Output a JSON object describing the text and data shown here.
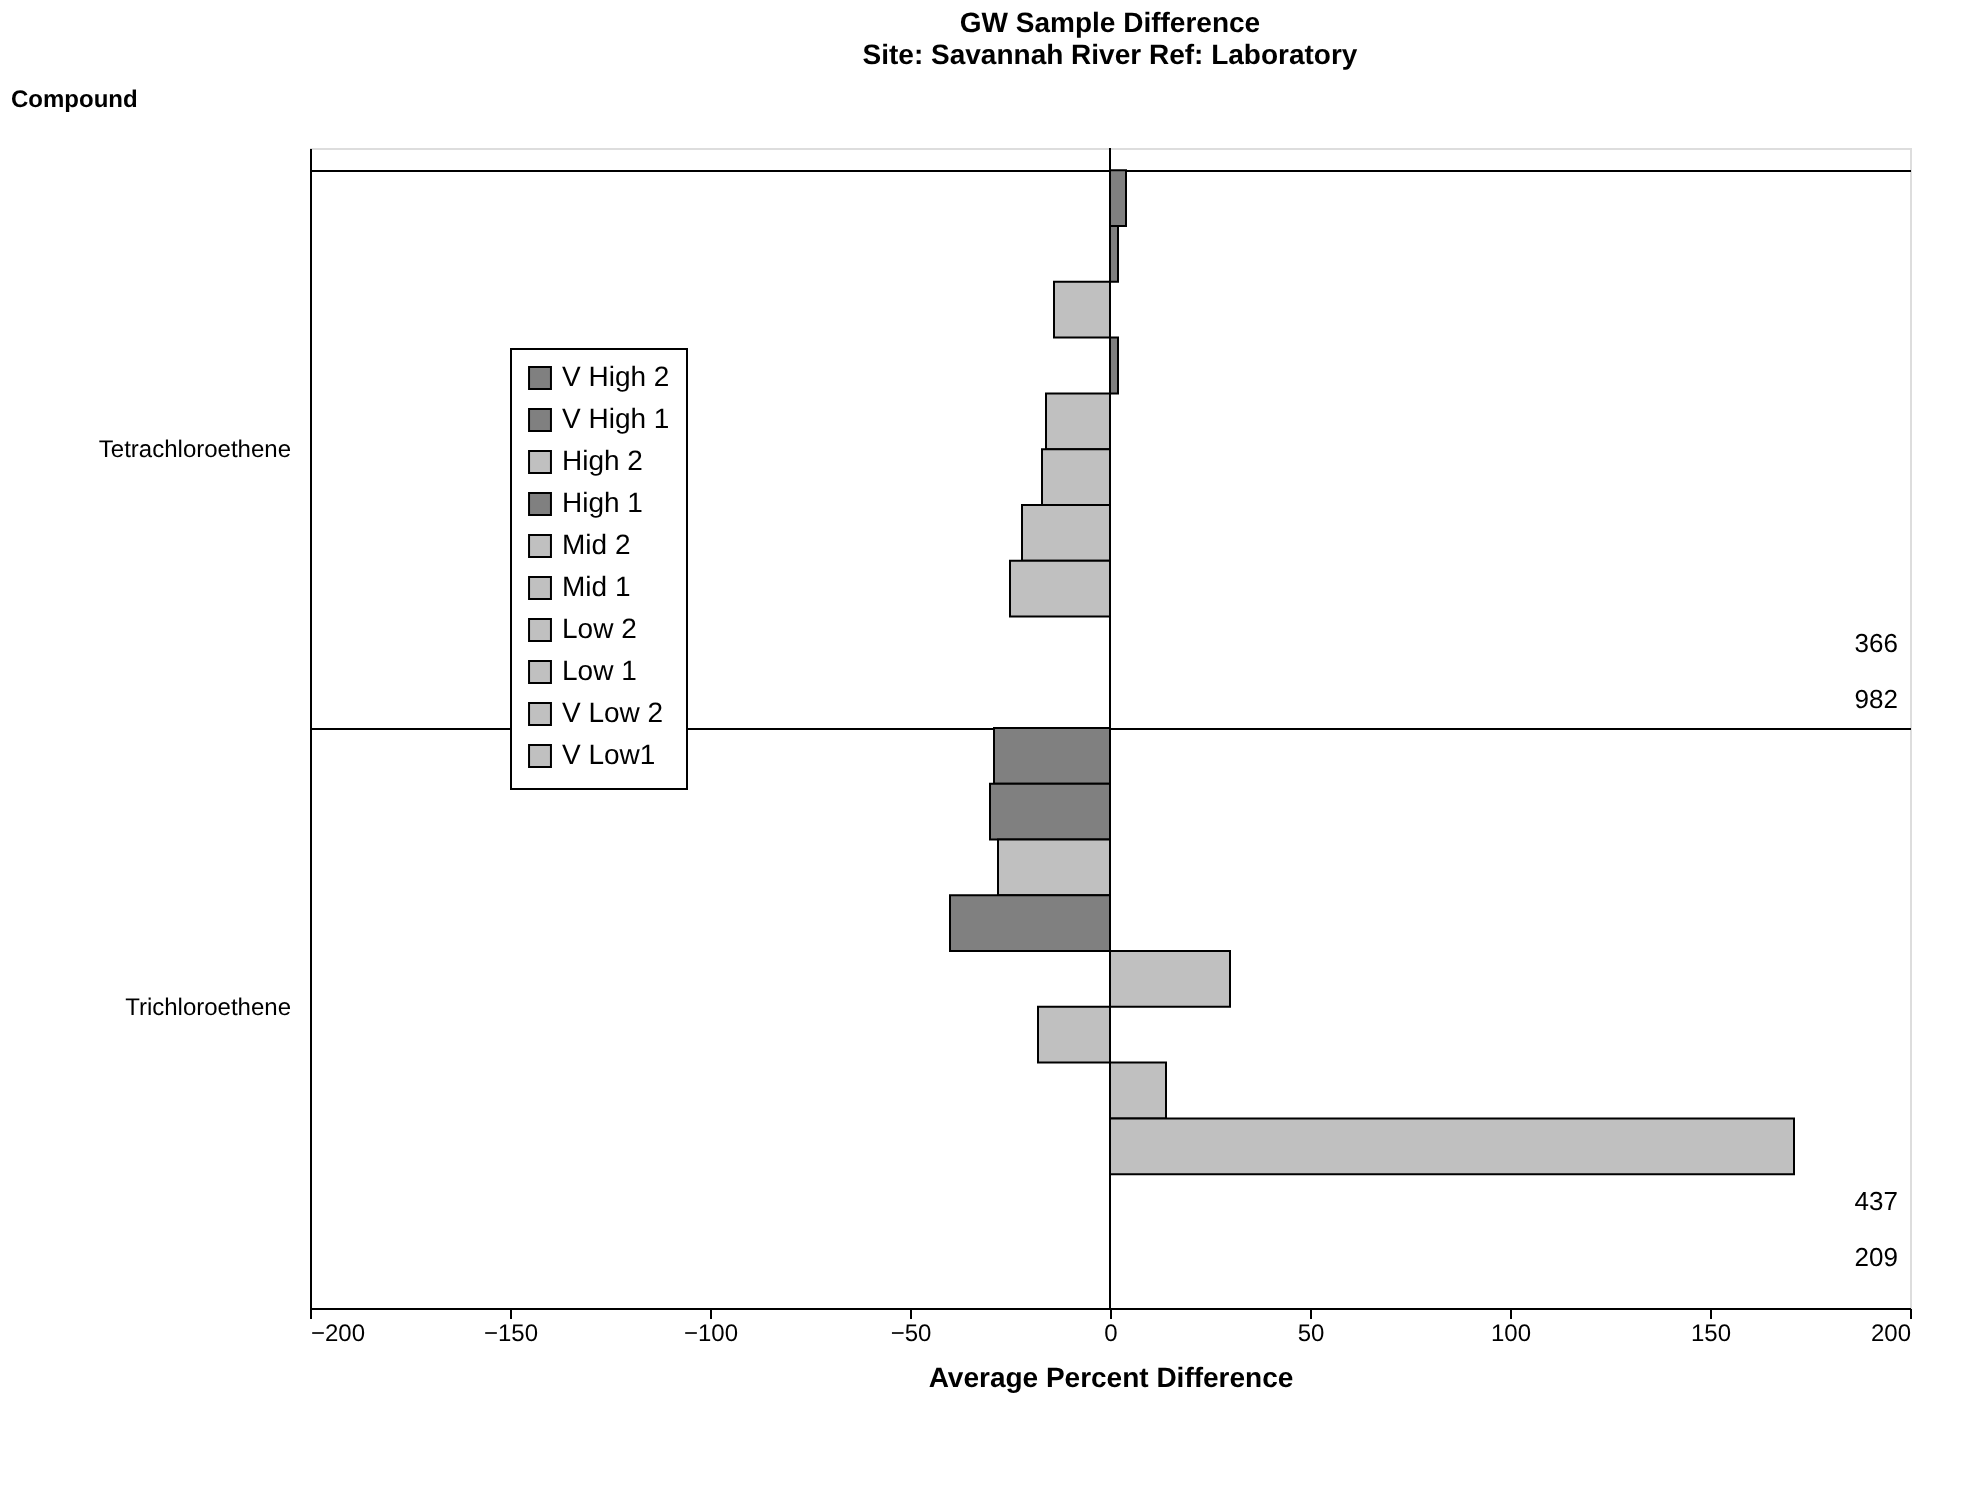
{
  "chart_data": {
    "type": "bar",
    "orientation": "horizontal",
    "title": "GW Sample Difference",
    "subtitle": "Site:  Savannah River  Ref:  Laboratory",
    "xlabel": "Average Percent Difference",
    "ylabel": "Compound",
    "categories": [
      "Tetrachloroethene",
      "Trichloroethene"
    ],
    "series": [
      {
        "name": "V High 2",
        "color": "#808080",
        "values": [
          4,
          -29
        ]
      },
      {
        "name": "V High 1",
        "color": "#808080",
        "values": [
          2,
          -30
        ]
      },
      {
        "name": "High 2",
        "color": "#c0c0c0",
        "values": [
          -14,
          -28
        ]
      },
      {
        "name": "High 1",
        "color": "#808080",
        "values": [
          2,
          -40
        ]
      },
      {
        "name": "Mid 2",
        "color": "#c0c0c0",
        "values": [
          -16,
          30
        ]
      },
      {
        "name": "Mid 1",
        "color": "#c0c0c0",
        "values": [
          -17,
          -18
        ]
      },
      {
        "name": "Low 2",
        "color": "#c0c0c0",
        "values": [
          -22,
          14
        ]
      },
      {
        "name": "Low 1",
        "color": "#c0c0c0",
        "values": [
          -25,
          171
        ]
      },
      {
        "name": "V Low 2",
        "color": "#c0c0c0",
        "values": [
          null,
          null
        ],
        "value_labels": [
          "366",
          "437"
        ]
      },
      {
        "name": "V Low1",
        "color": "#c0c0c0",
        "values": [
          null,
          null
        ],
        "value_labels": [
          "982",
          "209"
        ]
      }
    ],
    "xlim": [
      -200,
      200
    ],
    "xticks": [
      -200,
      -150,
      -100,
      -50,
      0,
      50,
      100,
      150,
      200
    ],
    "ref_lines": [
      {
        "axis": "x",
        "value": 0
      }
    ],
    "grid": "y",
    "legend": "top left"
  }
}
